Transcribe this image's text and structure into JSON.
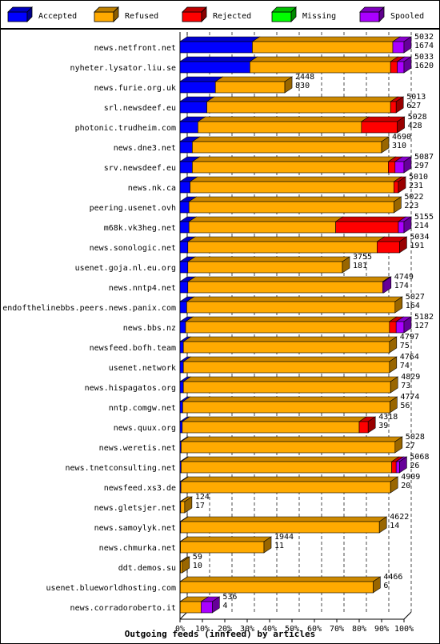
{
  "chart_data": {
    "type": "bar",
    "orientation": "horizontal",
    "stacked": true,
    "title": "",
    "xlabel": "Outgoing feeds (innfeed) by articles",
    "ylabel": "",
    "xlim": [
      0,
      100
    ],
    "x_tick_labels": [
      "0%",
      "10%",
      "20%",
      "30%",
      "40%",
      "50%",
      "60%",
      "70%",
      "80%",
      "90%",
      "100%"
    ],
    "legend_position": "top",
    "series": [
      {
        "name": "Accepted",
        "color": "#0000ff"
      },
      {
        "name": "Refused",
        "color": "#ffaa00"
      },
      {
        "name": "Rejected",
        "color": "#ff0000"
      },
      {
        "name": "Missing",
        "color": "#00ff00"
      },
      {
        "name": "Spooled",
        "color": "#aa00ff"
      }
    ],
    "rows": [
      {
        "category": "news.netfront.net",
        "total": "5032",
        "accepted_label": "1674",
        "values": [
          32.3,
          62.7,
          0.0,
          0.0,
          5.0
        ]
      },
      {
        "category": "nyheter.lysator.liu.se",
        "total": "5033",
        "accepted_label": "1620",
        "values": [
          31.2,
          62.8,
          3.0,
          0.0,
          3.0
        ]
      },
      {
        "category": "news.furie.org.uk",
        "total": "2448",
        "accepted_label": "830",
        "values": [
          15.8,
          31.0,
          0.0,
          0.0,
          0.0
        ]
      },
      {
        "category": "srl.newsdeef.eu",
        "total": "5013",
        "accepted_label": "627",
        "values": [
          12.0,
          82.0,
          2.5,
          0.0,
          0.0
        ]
      },
      {
        "category": "photonic.trudheim.com",
        "total": "5028",
        "accepted_label": "428",
        "values": [
          8.0,
          73.0,
          16.0,
          0.0,
          0.0
        ]
      },
      {
        "category": "news.dne3.net",
        "total": "4690",
        "accepted_label": "310",
        "values": [
          5.5,
          84.5,
          0.0,
          0.0,
          0.0
        ]
      },
      {
        "category": "srv.newsdeef.eu",
        "total": "5087",
        "accepted_label": "297",
        "values": [
          5.5,
          87.5,
          3.0,
          0.0,
          4.0
        ]
      },
      {
        "category": "news.nk.ca",
        "total": "5010",
        "accepted_label": "231",
        "values": [
          4.5,
          91.0,
          2.0,
          0.0,
          0.0
        ]
      },
      {
        "category": "peering.usenet.ovh",
        "total": "5022",
        "accepted_label": "223",
        "values": [
          4.0,
          91.5,
          0.0,
          0.0,
          0.0
        ]
      },
      {
        "category": "m68k.vk3heg.net",
        "total": "5155",
        "accepted_label": "214",
        "values": [
          4.0,
          65.5,
          28.0,
          0.0,
          2.5
        ]
      },
      {
        "category": "news.sonologic.net",
        "total": "5034",
        "accepted_label": "191",
        "values": [
          3.5,
          84.5,
          10.0,
          0.0,
          0.0
        ]
      },
      {
        "category": "usenet.goja.nl.eu.org",
        "total": "3755",
        "accepted_label": "181",
        "values": [
          3.5,
          69.0,
          0.0,
          0.0,
          0.0
        ]
      },
      {
        "category": "news.nntp4.net",
        "total": "4749",
        "accepted_label": "174",
        "values": [
          3.5,
          87.0,
          0.0,
          0.0,
          0.5
        ]
      },
      {
        "category": "endofthelinebbs.peers.news.panix.com",
        "total": "5027",
        "accepted_label": "164",
        "values": [
          3.0,
          93.0,
          0.0,
          0.0,
          0.0
        ]
      },
      {
        "category": "news.bbs.nz",
        "total": "5182",
        "accepted_label": "127",
        "values": [
          2.5,
          91.0,
          3.0,
          0.0,
          3.5
        ]
      },
      {
        "category": "newsfeed.bofh.team",
        "total": "4797",
        "accepted_label": "75",
        "values": [
          1.5,
          92.0,
          0.0,
          0.0,
          0.0
        ]
      },
      {
        "category": "usenet.network",
        "total": "4764",
        "accepted_label": "74",
        "values": [
          1.5,
          92.0,
          0.0,
          0.0,
          0.0
        ]
      },
      {
        "category": "news.hispagatos.org",
        "total": "4829",
        "accepted_label": "73",
        "values": [
          1.5,
          92.5,
          0.0,
          0.0,
          0.0
        ]
      },
      {
        "category": "nntp.comgw.net",
        "total": "4774",
        "accepted_label": "56",
        "values": [
          1.2,
          92.5,
          0.0,
          0.0,
          0.0
        ]
      },
      {
        "category": "news.quux.org",
        "total": "4318",
        "accepted_label": "39",
        "values": [
          1.0,
          79.0,
          4.0,
          0.0,
          0.0
        ]
      },
      {
        "category": "news.weretis.net",
        "total": "5028",
        "accepted_label": "27",
        "values": [
          0.5,
          95.5,
          0.0,
          0.0,
          0.0
        ]
      },
      {
        "category": "news.tnetconsulting.net",
        "total": "5068",
        "accepted_label": "26",
        "values": [
          0.5,
          94.0,
          2.0,
          0.0,
          1.5
        ]
      },
      {
        "category": "newsfeed.xs3.de",
        "total": "4909",
        "accepted_label": "20",
        "values": [
          0.4,
          93.6,
          0.0,
          0.0,
          0.0
        ]
      },
      {
        "category": "news.gletsjer.net",
        "total": "124",
        "accepted_label": "17",
        "values": [
          0.3,
          1.8,
          0.0,
          0.0,
          0.0
        ]
      },
      {
        "category": "news.samoylyk.net",
        "total": "4622",
        "accepted_label": "14",
        "values": [
          0.3,
          88.7,
          0.0,
          0.0,
          0.0
        ]
      },
      {
        "category": "news.chmurka.net",
        "total": "1944",
        "accepted_label": "11",
        "values": [
          0.2,
          37.3,
          0.0,
          0.0,
          0.0
        ]
      },
      {
        "category": "ddt.demos.su",
        "total": "59",
        "accepted_label": "10",
        "values": [
          0.2,
          0.8,
          0.0,
          0.0,
          0.0
        ]
      },
      {
        "category": "usenet.blueworldhosting.com",
        "total": "4466",
        "accepted_label": "6",
        "values": [
          0.1,
          86.1,
          0.0,
          0.0,
          0.0
        ]
      },
      {
        "category": "news.corradoroberto.it",
        "total": "536",
        "accepted_label": "4",
        "values": [
          0.1,
          9.3,
          0.0,
          0.0,
          5.0
        ]
      }
    ]
  }
}
